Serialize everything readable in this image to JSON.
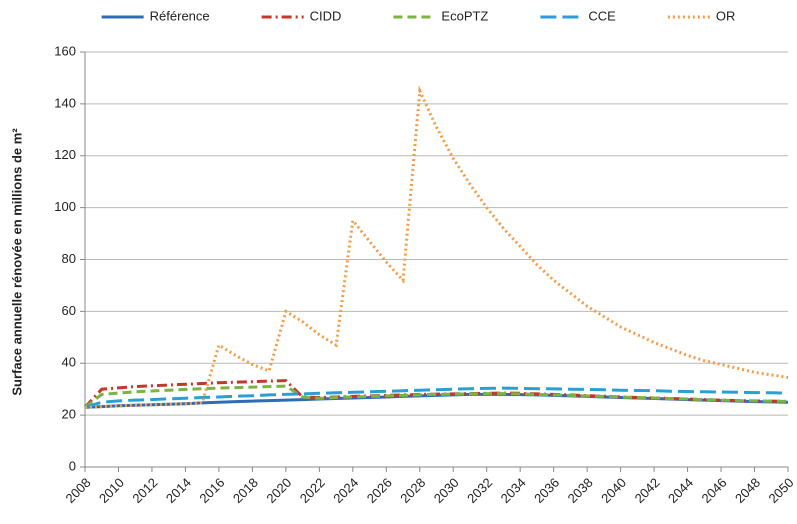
{
  "chart_data": {
    "type": "line",
    "y_label": "Surface annuelle rénovée en millions de m²",
    "x": [
      2008,
      2009,
      2010,
      2011,
      2012,
      2013,
      2014,
      2015,
      2016,
      2017,
      2018,
      2019,
      2020,
      2021,
      2022,
      2023,
      2024,
      2025,
      2026,
      2027,
      2028,
      2029,
      2030,
      2031,
      2032,
      2033,
      2034,
      2035,
      2036,
      2037,
      2038,
      2039,
      2040,
      2041,
      2042,
      2043,
      2044,
      2045,
      2046,
      2047,
      2048,
      2049,
      2050
    ],
    "xlim": [
      2008,
      2050
    ],
    "xticks": [
      2008,
      2010,
      2012,
      2014,
      2016,
      2018,
      2020,
      2022,
      2024,
      2026,
      2028,
      2030,
      2032,
      2034,
      2036,
      2038,
      2040,
      2042,
      2044,
      2046,
      2048,
      2050
    ],
    "ylim": [
      0,
      160
    ],
    "yticks": [
      0,
      20,
      40,
      60,
      80,
      100,
      120,
      140,
      160
    ],
    "grid": true,
    "legend": "top",
    "series": [
      {
        "name": "Référence",
        "color": "#2f6cb4",
        "style": "solid",
        "values": [
          23,
          23.3,
          23.6,
          23.8,
          24,
          24.2,
          24.4,
          24.7,
          25,
          25.2,
          25.4,
          25.6,
          25.8,
          26,
          26.2,
          26.4,
          26.6,
          26.8,
          27,
          27.2,
          27.4,
          27.6,
          27.8,
          28,
          28,
          28,
          27.9,
          27.8,
          27.6,
          27.4,
          27.2,
          27,
          26.8,
          26.6,
          26.4,
          26.2,
          26,
          25.8,
          25.6,
          25.4,
          25.2,
          25.1,
          25
        ]
      },
      {
        "name": "CIDD",
        "color": "#c0392b",
        "style": "dashdot",
        "values": [
          23,
          30,
          30.5,
          31,
          31.3,
          31.6,
          31.9,
          32.2,
          32.5,
          32.7,
          32.9,
          33.1,
          33.3,
          27,
          26.8,
          27,
          27.2,
          27.4,
          27.6,
          27.8,
          28,
          28.1,
          28.2,
          28.3,
          28.4,
          28.5,
          28.4,
          28.2,
          28,
          27.8,
          27.5,
          27.3,
          27,
          26.8,
          26.6,
          26.4,
          26.2,
          26,
          25.8,
          25.6,
          25.5,
          25.4,
          25.3
        ]
      },
      {
        "name": "EcoPTZ",
        "color": "#7cb342",
        "style": "dashed",
        "values": [
          23,
          28,
          28.5,
          29,
          29.3,
          29.6,
          29.9,
          30.2,
          30.4,
          30.6,
          30.8,
          31,
          31.2,
          27,
          26.5,
          26.8,
          27,
          27.2,
          27.4,
          27.6,
          27.8,
          28,
          28.1,
          28.2,
          28.3,
          28.3,
          28.2,
          28,
          27.8,
          27.6,
          27.4,
          27.2,
          27,
          26.8,
          26.6,
          26.4,
          26.2,
          26,
          25.8,
          25.6,
          25.5,
          25.4,
          25.3
        ]
      },
      {
        "name": "CCE",
        "color": "#2a9fd6",
        "style": "longdash",
        "values": [
          23,
          25,
          25.5,
          25.8,
          26,
          26.3,
          26.5,
          26.8,
          27,
          27.3,
          27.5,
          27.8,
          28,
          28.2,
          28.4,
          28.6,
          28.8,
          29,
          29.2,
          29.4,
          29.6,
          29.8,
          30,
          30.2,
          30.3,
          30.4,
          30.3,
          30.2,
          30.1,
          30,
          29.9,
          29.8,
          29.6,
          29.5,
          29.4,
          29.2,
          29.1,
          29,
          28.9,
          28.8,
          28.7,
          28.6,
          28.5
        ]
      },
      {
        "name": "OR",
        "color": "#f39c45",
        "style": "dotted",
        "values": [
          23,
          23.3,
          23.6,
          23.8,
          24,
          24.2,
          24.4,
          24.7,
          47,
          43,
          39.5,
          37,
          60,
          56,
          51,
          47,
          95,
          87,
          79,
          72,
          145,
          131,
          119,
          109,
          100,
          92,
          85,
          78,
          72,
          67,
          62,
          58,
          54,
          51,
          48,
          45.5,
          43,
          41,
          39.5,
          38,
          36.5,
          35.5,
          34.5
        ]
      }
    ]
  }
}
